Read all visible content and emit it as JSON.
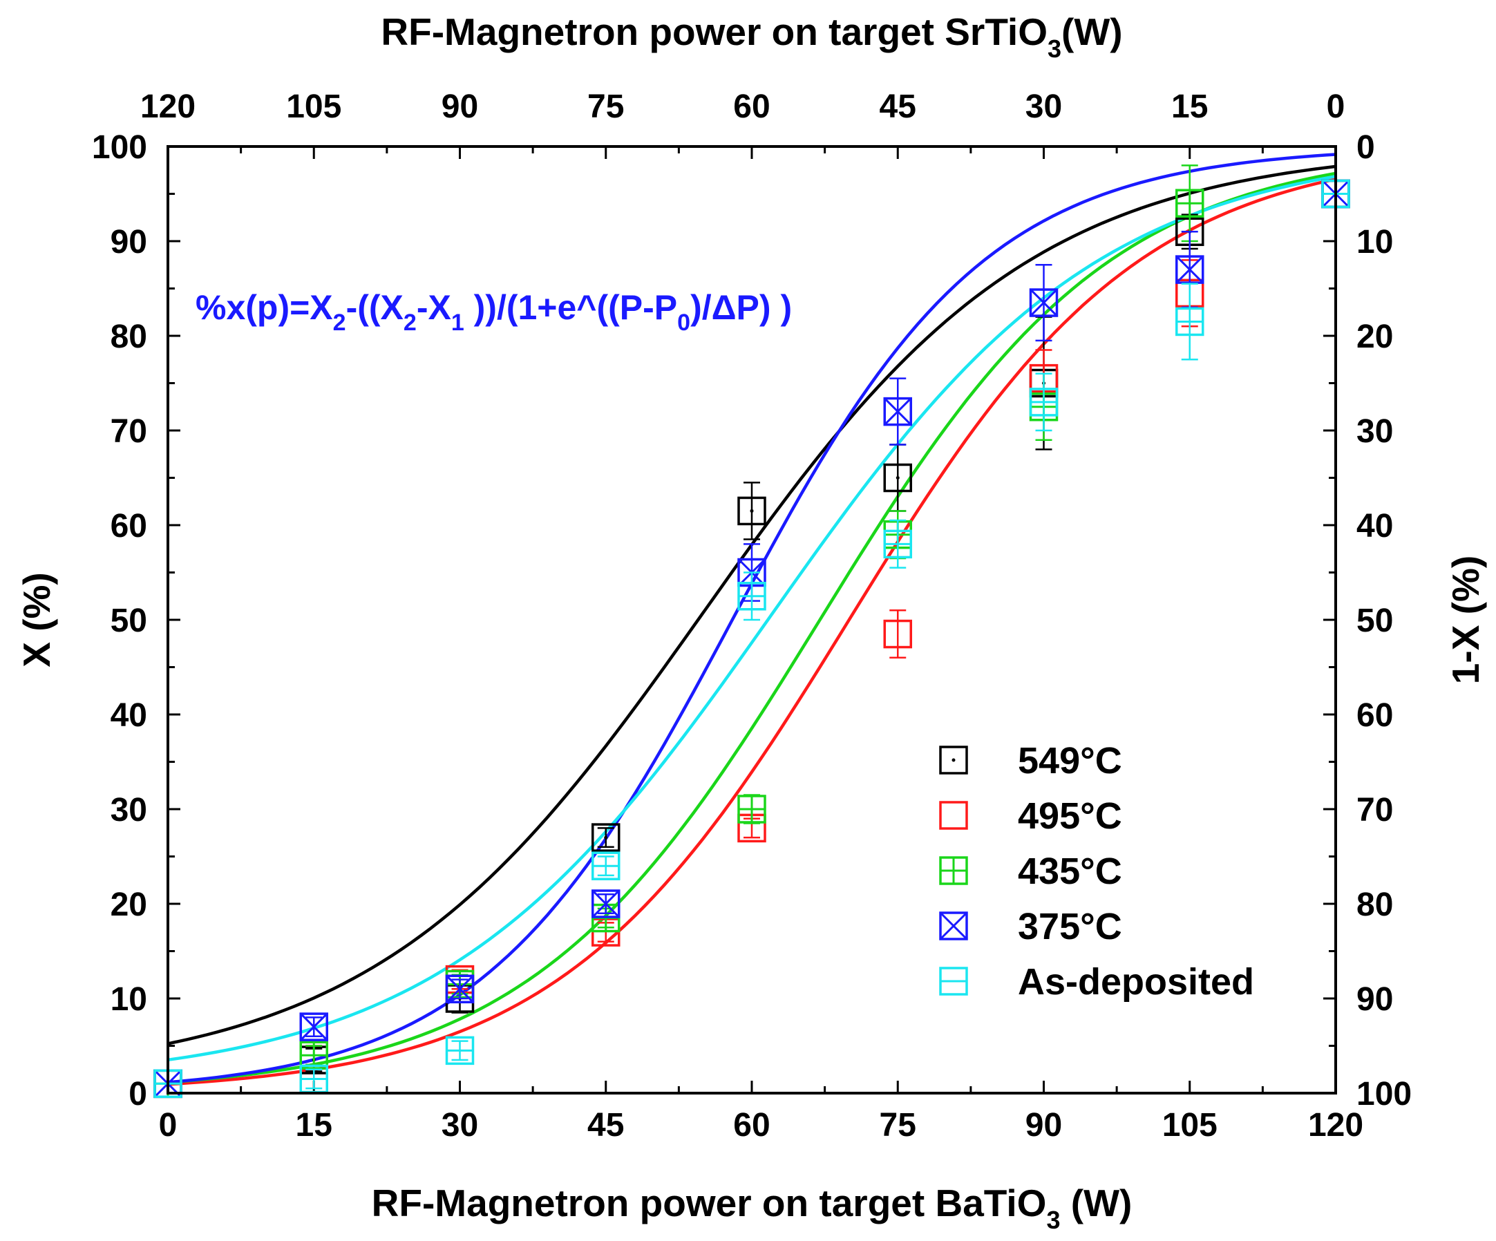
{
  "chart_data": {
    "type": "scatter",
    "title": "",
    "xlabel": "RF-Magnetron power on target BaTiO",
    "xlabel_sub": "3",
    "xlabel_unit": " (W)",
    "x_top_label": "RF-Magnetron power on target SrTiO",
    "x_top_label_sub": "3",
    "x_top_label_unit": "(W)",
    "ylabel": "X (%)",
    "y_right_label": "1-X (%)",
    "xlim": [
      0,
      120
    ],
    "ylim": [
      0,
      100
    ],
    "x_ticks": [
      0,
      15,
      30,
      45,
      60,
      75,
      90,
      105,
      120
    ],
    "x_tick_labels": [
      "0",
      "15",
      "30",
      "45",
      "60",
      "75",
      "90",
      "105",
      "120"
    ],
    "x_top_tick_labels": [
      "120",
      "105",
      "90",
      "75",
      "60",
      "45",
      "30",
      "15",
      "0"
    ],
    "y_ticks": [
      0,
      10,
      20,
      30,
      40,
      50,
      60,
      70,
      80,
      90,
      100
    ],
    "y_tick_labels": [
      "0",
      "10",
      "20",
      "30",
      "40",
      "50",
      "60",
      "70",
      "80",
      "90",
      "100"
    ],
    "y_right_tick_labels": [
      "100",
      "90",
      "80",
      "70",
      "60",
      "50",
      "40",
      "30",
      "20",
      "10",
      "0"
    ],
    "formula": {
      "p1": "%x(p)=X",
      "s1": "2",
      "p2": "-((X",
      "s2": "2",
      "p3": "-X",
      "s3": "1",
      "p4": " ))/(1+e^((P-P",
      "s4": "0",
      "p5": ")/ΔP) )"
    },
    "legend_position": "bottom-right",
    "series": [
      {
        "name": "549°C",
        "color": "#000000",
        "marker": "square-dot",
        "x": [
          0,
          15,
          30,
          45,
          60,
          75,
          90,
          105,
          120
        ],
        "y": [
          1,
          3.5,
          10,
          27,
          61.5,
          65,
          75,
          91,
          95
        ],
        "err": [
          0,
          1.2,
          1.5,
          1,
          3,
          3.5,
          7,
          1.8,
          0
        ],
        "fit": {
          "x1": 1.5,
          "x2": 100,
          "p0": 55,
          "dp": 17
        }
      },
      {
        "name": "495°C",
        "color": "#ff1a1a",
        "marker": "square",
        "x": [
          0,
          15,
          30,
          45,
          60,
          75,
          90,
          105,
          120
        ],
        "y": [
          1,
          4,
          12,
          17,
          28,
          48.5,
          75.5,
          84.5,
          95
        ],
        "err": [
          0,
          1,
          1,
          1,
          1,
          2.5,
          3,
          3.5,
          0
        ],
        "fit": {
          "x1": 0,
          "x2": 100,
          "p0": 70,
          "dp": 15
        }
      },
      {
        "name": "435°C",
        "color": "#1ad61a",
        "marker": "square-plus",
        "x": [
          0,
          15,
          30,
          45,
          60,
          75,
          90,
          105,
          120
        ],
        "y": [
          1,
          4,
          11.5,
          18.5,
          30,
          59,
          72.5,
          94,
          95
        ],
        "err": [
          0,
          1,
          1,
          1,
          1.5,
          2.5,
          3.5,
          4,
          0
        ],
        "fit": {
          "x1": 0,
          "x2": 100,
          "p0": 67,
          "dp": 15
        }
      },
      {
        "name": "375°C",
        "color": "#1a1aff",
        "marker": "square-x",
        "x": [
          0,
          15,
          30,
          45,
          60,
          75,
          90,
          105,
          120
        ],
        "y": [
          1,
          7,
          11,
          20,
          55,
          72,
          83.5,
          87,
          95
        ],
        "err": [
          0,
          1,
          1,
          1,
          3,
          3.5,
          4,
          4,
          0
        ],
        "fit": {
          "x1": 0,
          "x2": 100,
          "p0": 58,
          "dp": 13
        }
      },
      {
        "name": "As-deposited",
        "color": "#1ae6f0",
        "marker": "square-minus",
        "x": [
          0,
          15,
          30,
          45,
          60,
          75,
          90,
          105,
          120
        ],
        "y": [
          1,
          1.5,
          4.5,
          24,
          52.5,
          58,
          73,
          81.5,
          95
        ],
        "err": [
          0,
          1,
          1,
          1,
          2.5,
          2.5,
          3,
          4,
          0
        ],
        "fit": {
          "x1": 1,
          "x2": 100,
          "p0": 62,
          "dp": 17
        }
      }
    ]
  }
}
